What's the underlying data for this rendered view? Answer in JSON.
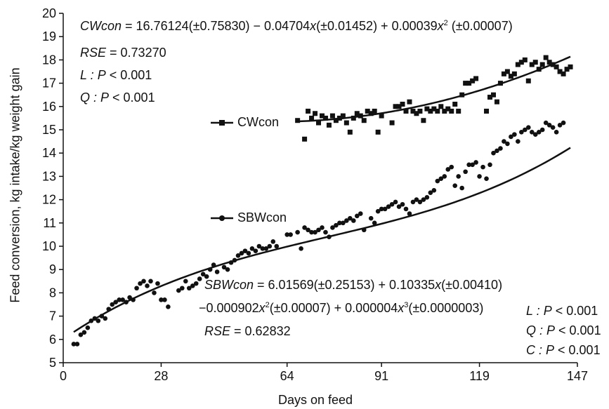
{
  "chart_data": {
    "type": "scatter",
    "xlabel": "Days on feed",
    "ylabel": "Feed conversion, kg intake/kg weight gain",
    "xlim": [
      0,
      147
    ],
    "ylim": [
      5,
      20
    ],
    "x_ticks": [
      0,
      28,
      64,
      91,
      119,
      147
    ],
    "y_ticks": [
      5,
      6,
      7,
      8,
      9,
      10,
      11,
      12,
      13,
      14,
      15,
      16,
      17,
      18,
      19,
      20
    ],
    "legend_position": "inline, left of each series",
    "series": [
      {
        "name": "CWcon",
        "marker": "square",
        "fit": {
          "type": "quadratic",
          "coefficients": [
            16.76124,
            -0.04704,
            0.00039
          ],
          "x_range": [
            67,
            145
          ]
        },
        "points": [
          [
            67,
            15.4
          ],
          [
            69,
            14.6
          ],
          [
            70,
            15.8
          ],
          [
            71,
            15.5
          ],
          [
            72,
            15.7
          ],
          [
            73,
            15.3
          ],
          [
            74,
            15.6
          ],
          [
            75,
            15.5
          ],
          [
            76,
            15.2
          ],
          [
            77,
            15.6
          ],
          [
            78,
            15.4
          ],
          [
            79,
            15.5
          ],
          [
            80,
            15.6
          ],
          [
            81,
            15.3
          ],
          [
            82,
            14.9
          ],
          [
            83,
            15.5
          ],
          [
            84,
            15.7
          ],
          [
            85,
            15.6
          ],
          [
            86,
            15.4
          ],
          [
            87,
            15.8
          ],
          [
            88,
            15.7
          ],
          [
            89,
            15.8
          ],
          [
            90,
            14.9
          ],
          [
            91,
            15.6
          ],
          [
            94,
            15.3
          ],
          [
            95,
            16.0
          ],
          [
            96,
            16.0
          ],
          [
            97,
            16.1
          ],
          [
            98,
            15.8
          ],
          [
            99,
            16.2
          ],
          [
            100,
            15.8
          ],
          [
            101,
            15.7
          ],
          [
            102,
            15.8
          ],
          [
            103,
            15.4
          ],
          [
            104,
            15.9
          ],
          [
            105,
            15.8
          ],
          [
            106,
            15.9
          ],
          [
            107,
            15.8
          ],
          [
            108,
            16.0
          ],
          [
            109,
            15.8
          ],
          [
            110,
            15.9
          ],
          [
            111,
            15.8
          ],
          [
            112,
            16.1
          ],
          [
            113,
            15.8
          ],
          [
            114,
            16.5
          ],
          [
            115,
            17.0
          ],
          [
            116,
            17.0
          ],
          [
            117,
            17.1
          ],
          [
            118,
            17.2
          ],
          [
            121,
            15.8
          ],
          [
            122,
            16.4
          ],
          [
            123,
            16.5
          ],
          [
            124,
            16.2
          ],
          [
            125,
            17.0
          ],
          [
            126,
            17.4
          ],
          [
            127,
            17.5
          ],
          [
            128,
            17.3
          ],
          [
            129,
            17.4
          ],
          [
            130,
            17.8
          ],
          [
            131,
            17.9
          ],
          [
            132,
            18.0
          ],
          [
            133,
            17.1
          ],
          [
            134,
            17.8
          ],
          [
            135,
            17.9
          ],
          [
            136,
            17.6
          ],
          [
            137,
            17.8
          ],
          [
            138,
            18.1
          ],
          [
            139,
            17.9
          ],
          [
            140,
            17.8
          ],
          [
            141,
            17.7
          ],
          [
            142,
            17.5
          ],
          [
            143,
            17.4
          ],
          [
            144,
            17.6
          ],
          [
            145,
            17.7
          ]
        ]
      },
      {
        "name": "SBWcon",
        "marker": "circle",
        "fit": {
          "type": "cubic",
          "coefficients": [
            6.01569,
            0.10335,
            -0.000902,
            4e-06
          ],
          "x_range": [
            3,
            145
          ]
        },
        "points": [
          [
            3,
            5.8
          ],
          [
            4,
            5.8
          ],
          [
            5,
            6.2
          ],
          [
            6,
            6.3
          ],
          [
            7,
            6.5
          ],
          [
            8,
            6.8
          ],
          [
            9,
            6.9
          ],
          [
            10,
            6.8
          ],
          [
            11,
            7.0
          ],
          [
            12,
            6.9
          ],
          [
            13,
            7.3
          ],
          [
            14,
            7.5
          ],
          [
            15,
            7.6
          ],
          [
            16,
            7.7
          ],
          [
            17,
            7.7
          ],
          [
            18,
            7.6
          ],
          [
            19,
            7.8
          ],
          [
            20,
            7.7
          ],
          [
            21,
            8.2
          ],
          [
            22,
            8.4
          ],
          [
            23,
            8.5
          ],
          [
            24,
            8.3
          ],
          [
            25,
            8.5
          ],
          [
            26,
            8.0
          ],
          [
            27,
            8.4
          ],
          [
            28,
            7.7
          ],
          [
            29,
            7.7
          ],
          [
            30,
            7.4
          ],
          [
            33,
            8.1
          ],
          [
            34,
            8.2
          ],
          [
            35,
            8.5
          ],
          [
            36,
            8.2
          ],
          [
            37,
            8.3
          ],
          [
            38,
            8.4
          ],
          [
            39,
            8.6
          ],
          [
            40,
            8.8
          ],
          [
            41,
            8.7
          ],
          [
            42,
            9.0
          ],
          [
            43,
            9.2
          ],
          [
            44,
            8.9
          ],
          [
            46,
            9.1
          ],
          [
            47,
            9.0
          ],
          [
            48,
            9.3
          ],
          [
            49,
            9.4
          ],
          [
            50,
            9.6
          ],
          [
            51,
            9.7
          ],
          [
            52,
            9.8
          ],
          [
            53,
            9.7
          ],
          [
            54,
            9.9
          ],
          [
            55,
            9.8
          ],
          [
            56,
            10.0
          ],
          [
            57,
            9.9
          ],
          [
            58,
            9.9
          ],
          [
            59,
            10.0
          ],
          [
            60,
            10.2
          ],
          [
            61,
            10.0
          ],
          [
            64,
            10.5
          ],
          [
            65,
            10.5
          ],
          [
            67,
            10.6
          ],
          [
            68,
            9.9
          ],
          [
            69,
            10.8
          ],
          [
            70,
            10.7
          ],
          [
            71,
            10.6
          ],
          [
            72,
            10.6
          ],
          [
            73,
            10.7
          ],
          [
            74,
            10.8
          ],
          [
            75,
            10.6
          ],
          [
            76,
            10.4
          ],
          [
            77,
            10.8
          ],
          [
            78,
            10.9
          ],
          [
            79,
            11.0
          ],
          [
            80,
            11.0
          ],
          [
            81,
            11.1
          ],
          [
            82,
            11.2
          ],
          [
            83,
            11.1
          ],
          [
            84,
            11.3
          ],
          [
            85,
            11.4
          ],
          [
            86,
            10.7
          ],
          [
            88,
            11.2
          ],
          [
            89,
            11.0
          ],
          [
            90,
            11.5
          ],
          [
            91,
            11.6
          ],
          [
            92,
            11.6
          ],
          [
            93,
            11.7
          ],
          [
            94,
            11.8
          ],
          [
            95,
            11.9
          ],
          [
            96,
            11.7
          ],
          [
            97,
            11.8
          ],
          [
            98,
            11.6
          ],
          [
            99,
            11.4
          ],
          [
            100,
            11.9
          ],
          [
            101,
            12.0
          ],
          [
            102,
            11.9
          ],
          [
            103,
            12.0
          ],
          [
            104,
            12.1
          ],
          [
            105,
            12.3
          ],
          [
            106,
            12.4
          ],
          [
            107,
            12.8
          ],
          [
            108,
            12.9
          ],
          [
            109,
            13.0
          ],
          [
            110,
            13.3
          ],
          [
            111,
            13.4
          ],
          [
            112,
            12.6
          ],
          [
            113,
            13.0
          ],
          [
            114,
            12.5
          ],
          [
            115,
            13.2
          ],
          [
            116,
            13.5
          ],
          [
            117,
            13.5
          ],
          [
            118,
            13.6
          ],
          [
            119,
            13.0
          ],
          [
            120,
            13.4
          ],
          [
            121,
            12.9
          ],
          [
            122,
            13.5
          ],
          [
            123,
            14.0
          ],
          [
            124,
            14.1
          ],
          [
            125,
            14.2
          ],
          [
            126,
            14.5
          ],
          [
            127,
            14.4
          ],
          [
            128,
            14.7
          ],
          [
            129,
            14.8
          ],
          [
            130,
            14.5
          ],
          [
            131,
            14.9
          ],
          [
            132,
            15.0
          ],
          [
            133,
            15.1
          ],
          [
            134,
            14.9
          ],
          [
            135,
            14.8
          ],
          [
            136,
            14.9
          ],
          [
            137,
            15.0
          ],
          [
            138,
            15.3
          ],
          [
            139,
            15.2
          ],
          [
            140,
            15.1
          ],
          [
            141,
            14.9
          ],
          [
            142,
            15.2
          ],
          [
            143,
            15.3
          ]
        ]
      }
    ],
    "annotations": {
      "cw_eq_name": "CWcon",
      "cw_eq_a": " = 16.76124(±0.75830) − 0.04704",
      "cw_eq_x1": "x",
      "cw_eq_b": "(±0.01452) + 0.00039",
      "cw_eq_x2": "x",
      "cw_eq_sup2": "2",
      "cw_eq_c": " (±0.00007)",
      "cw_rse_name": "RSE",
      "cw_rse_val": " = 0.73270",
      "cw_l_name": "L : P",
      "cw_l_val": " < 0.001",
      "cw_q_name": "Q : P",
      "cw_q_val": " < 0.001",
      "sbw_eq_name": "SBWcon",
      "sbw_eq_a": " = 6.01569(±0.25153) + 0.10335",
      "sbw_eq_x1": "x",
      "sbw_eq_b": "(±0.00410)",
      "sbw_eq_c": "−0.000902",
      "sbw_eq_x2": "x",
      "sbw_eq_sup2": "2",
      "sbw_eq_d": "(±0.00007) + 0.000004",
      "sbw_eq_x3": "x",
      "sbw_eq_sup3": "3",
      "sbw_eq_e": "(±0.0000003)",
      "sbw_rse_name": "RSE",
      "sbw_rse_val": " = 0.62832",
      "sbw_l_name": "L :  P",
      "sbw_l_val": " < 0.001",
      "sbw_q_name": "Q : P",
      "sbw_q_val": " < 0.001",
      "sbw_c_name": "C : P",
      "sbw_c_val": " < 0.001"
    }
  }
}
